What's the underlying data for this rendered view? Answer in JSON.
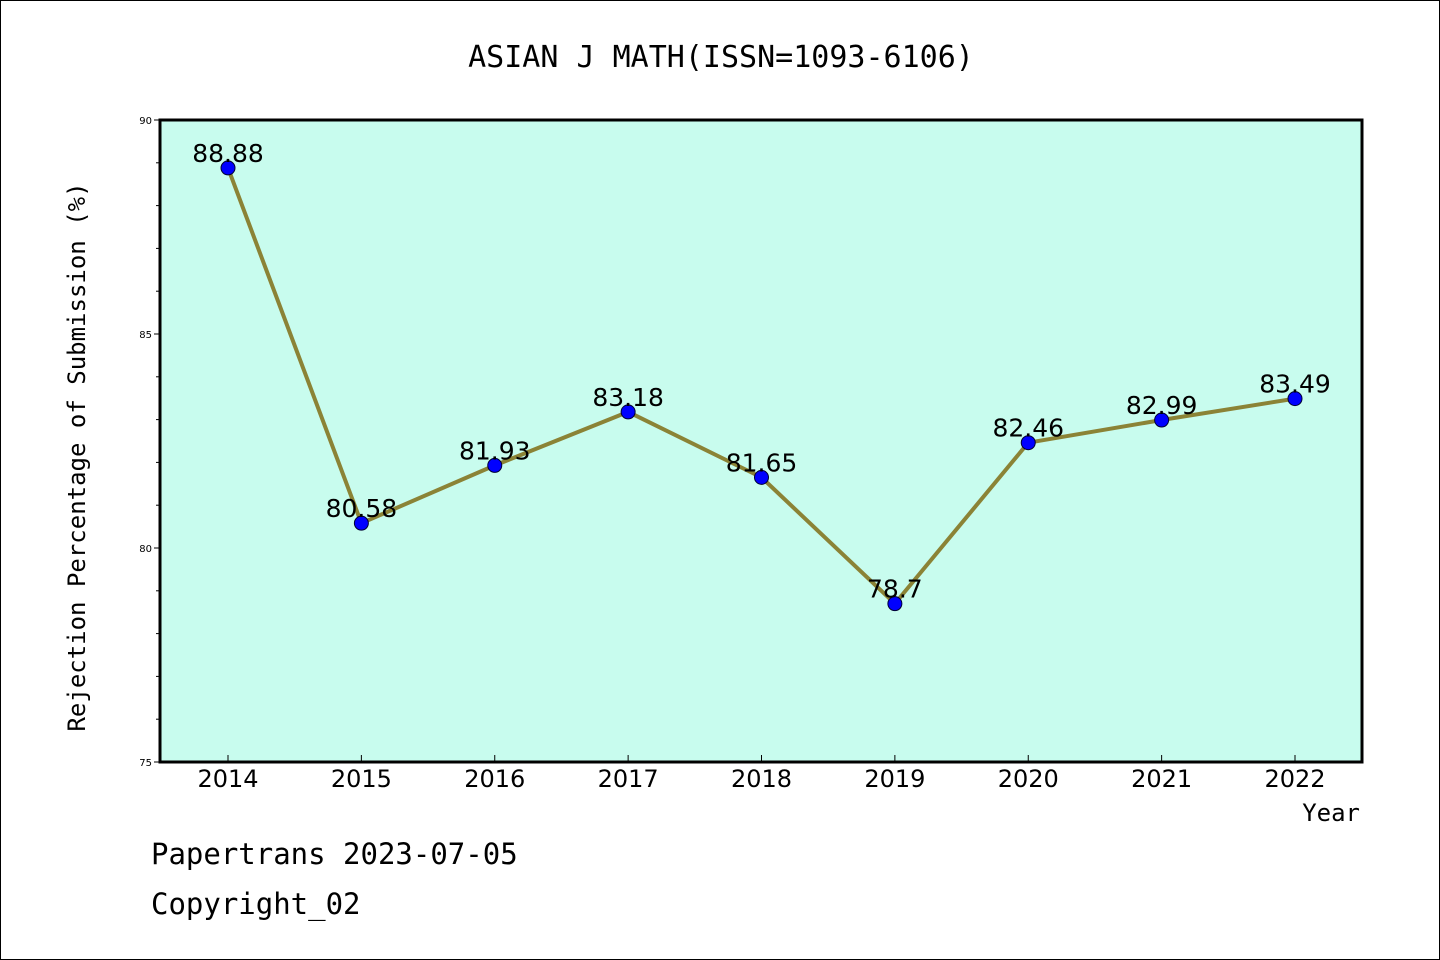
{
  "chart_data": {
    "type": "line",
    "title": "ASIAN J MATH(ISSN=1093-6106)",
    "xlabel": "Year",
    "ylabel": "Rejection Percentage of Submission (%)",
    "categories": [
      "2014",
      "2015",
      "2016",
      "2017",
      "2018",
      "2019",
      "2020",
      "2021",
      "2022"
    ],
    "values": [
      88.88,
      80.58,
      81.93,
      83.18,
      81.65,
      78.7,
      82.46,
      82.99,
      83.49
    ],
    "value_labels": [
      "88.88",
      "80.58",
      "81.93",
      "83.18",
      "81.65",
      "78.7",
      "82.46",
      "82.99",
      "83.49"
    ],
    "ylim": [
      75,
      90
    ],
    "y_major_ticks": [
      75,
      80,
      85,
      90
    ],
    "y_minor_step": 1,
    "grid": false,
    "legend": "none",
    "colors": {
      "plot_background": "#c8fcee",
      "line": "#8b8336",
      "marker": "#0000ff",
      "axis": "#000000"
    }
  },
  "footer": {
    "line1": "Papertrans 2023-07-05",
    "line2": "Copyright_02"
  }
}
